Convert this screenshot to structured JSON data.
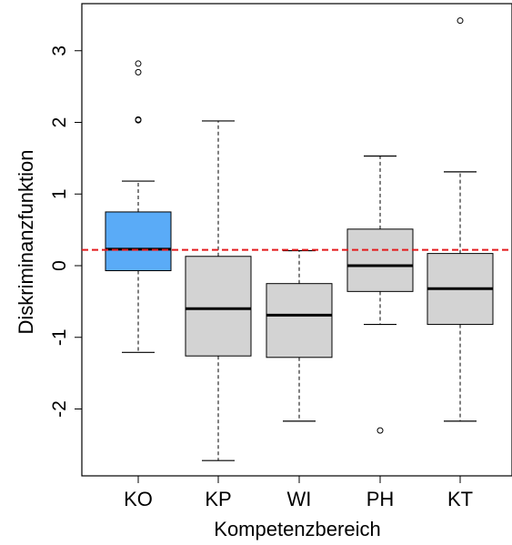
{
  "chart_data": {
    "type": "boxplot",
    "title": "",
    "xlabel": "Kompetenzbereich",
    "ylabel": "Diskriminanzfunktion",
    "ylim": [
      -2.95,
      3.6
    ],
    "yticks": [
      -2,
      -1,
      0,
      1,
      2,
      3
    ],
    "ytick_labels": [
      "-2",
      "-1",
      "0",
      "1",
      "2",
      "3"
    ],
    "grid": false,
    "reference_line": {
      "value": 0.22,
      "color": "#e41a1c",
      "style": "dashed"
    },
    "categories": [
      "KO",
      "KP",
      "WI",
      "PH",
      "KT"
    ],
    "boxes": [
      {
        "label": "KO",
        "whisker_low": -1.21,
        "q1": -0.07,
        "median": 0.23,
        "q3": 0.75,
        "whisker_high": 1.18,
        "outliers": [
          2.03,
          2.04,
          2.7,
          2.82
        ],
        "color": "#5aabf7"
      },
      {
        "label": "KP",
        "whisker_low": -2.72,
        "q1": -1.26,
        "median": -0.6,
        "q3": 0.13,
        "whisker_high": 2.02,
        "outliers": [],
        "color": "#d3d3d3"
      },
      {
        "label": "WI",
        "whisker_low": -2.17,
        "q1": -1.28,
        "median": -0.69,
        "q3": -0.25,
        "whisker_high": 0.21,
        "outliers": [],
        "color": "#d3d3d3"
      },
      {
        "label": "PH",
        "whisker_low": -0.82,
        "q1": -0.36,
        "median": 0.0,
        "q3": 0.51,
        "whisker_high": 1.53,
        "outliers": [
          -2.3
        ],
        "color": "#d3d3d3"
      },
      {
        "label": "KT",
        "whisker_low": -2.17,
        "q1": -0.82,
        "median": -0.32,
        "q3": 0.17,
        "whisker_high": 1.31,
        "outliers": [
          3.42
        ],
        "color": "#d3d3d3"
      }
    ]
  }
}
